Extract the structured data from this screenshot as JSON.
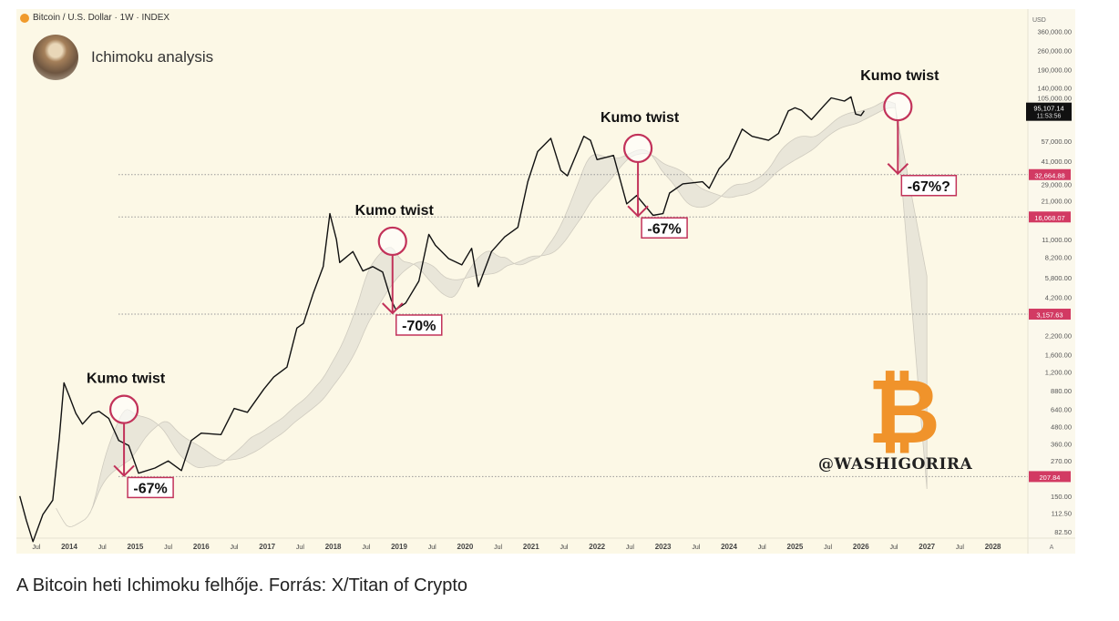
{
  "header": {
    "symbol_label": "Bitcoin / U.S. Dollar · 1W · INDEX"
  },
  "author": {
    "name": "Ichimoku analysis"
  },
  "watermark": {
    "handle": "@WASHIGORIRA",
    "logo": "₿"
  },
  "caption": "A Bitcoin heti Ichimoku felhője. Forrás: X/Titan of Crypto",
  "colors": {
    "background": "#fcf8e6",
    "price": "#111111",
    "cloud": "#e4e1d6",
    "annotation": "#c2325a",
    "tag": "#d23a63",
    "logo": "#f0932b"
  },
  "chart_data": {
    "type": "line",
    "title": "",
    "y_scale": "log",
    "currency_label": "USD",
    "ylim": [
      70,
      380000
    ],
    "xlim": [
      2013.2,
      2028.6
    ],
    "y_ticks": [
      "360,000.00",
      "260,000.00",
      "190,000.00",
      "140,000.00",
      "105,000.00",
      "57,000.00",
      "41,000.00",
      "29,000.00",
      "21,000.00",
      "11,000.00",
      "8,200.00",
      "5,800.00",
      "4,200.00",
      "2,200.00",
      "1,600.00",
      "1,200.00",
      "880.00",
      "640.00",
      "480.00",
      "360.00",
      "270.00",
      "150.00",
      "112.50",
      "82.50"
    ],
    "y_tick_values": [
      360000,
      260000,
      190000,
      140000,
      105000,
      57000,
      41000,
      29000,
      21000,
      11000,
      8200,
      5800,
      4200,
      2200,
      1600,
      1200,
      880,
      640,
      480,
      360,
      270,
      150,
      112.5,
      82.5
    ],
    "x_ticks": [
      {
        "label": "Jul",
        "x": 2013.5
      },
      {
        "label": "2014",
        "x": 2014
      },
      {
        "label": "Jul",
        "x": 2014.5
      },
      {
        "label": "2015",
        "x": 2015
      },
      {
        "label": "Jul",
        "x": 2015.5
      },
      {
        "label": "2016",
        "x": 2016
      },
      {
        "label": "Jul",
        "x": 2016.5
      },
      {
        "label": "2017",
        "x": 2017
      },
      {
        "label": "Jul",
        "x": 2017.5
      },
      {
        "label": "2018",
        "x": 2018
      },
      {
        "label": "Jul",
        "x": 2018.5
      },
      {
        "label": "2019",
        "x": 2019
      },
      {
        "label": "Jul",
        "x": 2019.5
      },
      {
        "label": "2020",
        "x": 2020
      },
      {
        "label": "Jul",
        "x": 2020.5
      },
      {
        "label": "2021",
        "x": 2021
      },
      {
        "label": "Jul",
        "x": 2021.5
      },
      {
        "label": "2022",
        "x": 2022
      },
      {
        "label": "Jul",
        "x": 2022.5
      },
      {
        "label": "2023",
        "x": 2023
      },
      {
        "label": "Jul",
        "x": 2023.5
      },
      {
        "label": "2024",
        "x": 2024
      },
      {
        "label": "Jul",
        "x": 2024.5
      },
      {
        "label": "2025",
        "x": 2025
      },
      {
        "label": "Jul",
        "x": 2025.5
      },
      {
        "label": "2026",
        "x": 2026
      },
      {
        "label": "Jul",
        "x": 2026.5
      },
      {
        "label": "2027",
        "x": 2027
      },
      {
        "label": "Jul",
        "x": 2027.5
      },
      {
        "label": "2028",
        "x": 2028
      }
    ],
    "axis_corner_label": "A",
    "series": [
      {
        "x": [
          2013.25,
          2013.35,
          2013.45,
          2013.6,
          2013.75,
          2013.85,
          2013.92,
          2014.0,
          2014.1,
          2014.2,
          2014.35,
          2014.45,
          2014.6,
          2014.75,
          2014.9,
          2015.05,
          2015.3,
          2015.5,
          2015.7,
          2015.85,
          2016.0,
          2016.3,
          2016.5,
          2016.7,
          2016.95,
          2017.1,
          2017.3,
          2017.45,
          2017.55,
          2017.7,
          2017.85,
          2017.95,
          2018.05,
          2018.1,
          2018.3,
          2018.45,
          2018.6,
          2018.75,
          2018.88,
          2018.95,
          2019.1,
          2019.3,
          2019.45,
          2019.55,
          2019.75,
          2019.95,
          2020.1,
          2020.2,
          2020.4,
          2020.6,
          2020.8,
          2020.95,
          2021.1,
          2021.3,
          2021.45,
          2021.55,
          2021.8,
          2021.9,
          2022.0,
          2022.25,
          2022.45,
          2022.6,
          2022.85,
          2023.0,
          2023.1,
          2023.3,
          2023.6,
          2023.7,
          2023.85,
          2024.0,
          2024.2,
          2024.35,
          2024.6,
          2024.75,
          2024.9,
          2025.0,
          2025.1,
          2025.25,
          2025.45,
          2025.55,
          2025.75,
          2025.85,
          2025.92,
          2026.0,
          2026.05
        ],
        "y": [
          150,
          100,
          70,
          110,
          140,
          400,
          1000,
          800,
          600,
          500,
          600,
          620,
          550,
          380,
          350,
          220,
          240,
          270,
          230,
          380,
          430,
          420,
          650,
          610,
          900,
          1100,
          1300,
          2500,
          2700,
          4500,
          7000,
          17000,
          11000,
          7500,
          9000,
          6500,
          7000,
          6400,
          4000,
          3400,
          3800,
          5500,
          12000,
          10000,
          8000,
          7200,
          9500,
          5000,
          9000,
          11500,
          13500,
          29000,
          48000,
          60000,
          35000,
          32000,
          62000,
          58000,
          42000,
          45000,
          20000,
          23000,
          16500,
          17000,
          24000,
          28000,
          29000,
          26000,
          36000,
          43000,
          70000,
          62000,
          58000,
          65000,
          95000,
          100000,
          96000,
          82000,
          105000,
          118000,
          112000,
          120000,
          90000,
          88000,
          95107.14
        ]
      }
    ],
    "current_price": {
      "value": "95,107.14",
      "time": "11:53:56"
    },
    "levels": [
      {
        "value": 207.84,
        "label": "207.84"
      },
      {
        "value": 3157.63,
        "label": "3,157.63"
      },
      {
        "value": 16068.07,
        "label": "16,068.07"
      },
      {
        "value": 32664.88,
        "label": "32,664.88"
      }
    ],
    "annotations": [
      {
        "title": "Kumo twist",
        "x": 2014.83,
        "y": 640,
        "target": 207.84,
        "drop_label": "-67%"
      },
      {
        "title": "Kumo twist",
        "x": 2018.9,
        "y": 10700,
        "target": 3157.63,
        "drop_label": "-70%"
      },
      {
        "title": "Kumo twist",
        "x": 2022.62,
        "y": 50700,
        "target": 16068.07,
        "drop_label": "-67%"
      },
      {
        "title": "Kumo twist",
        "x": 2026.56,
        "y": 102000,
        "target": 32664.88,
        "drop_label": "-67%?"
      }
    ]
  }
}
